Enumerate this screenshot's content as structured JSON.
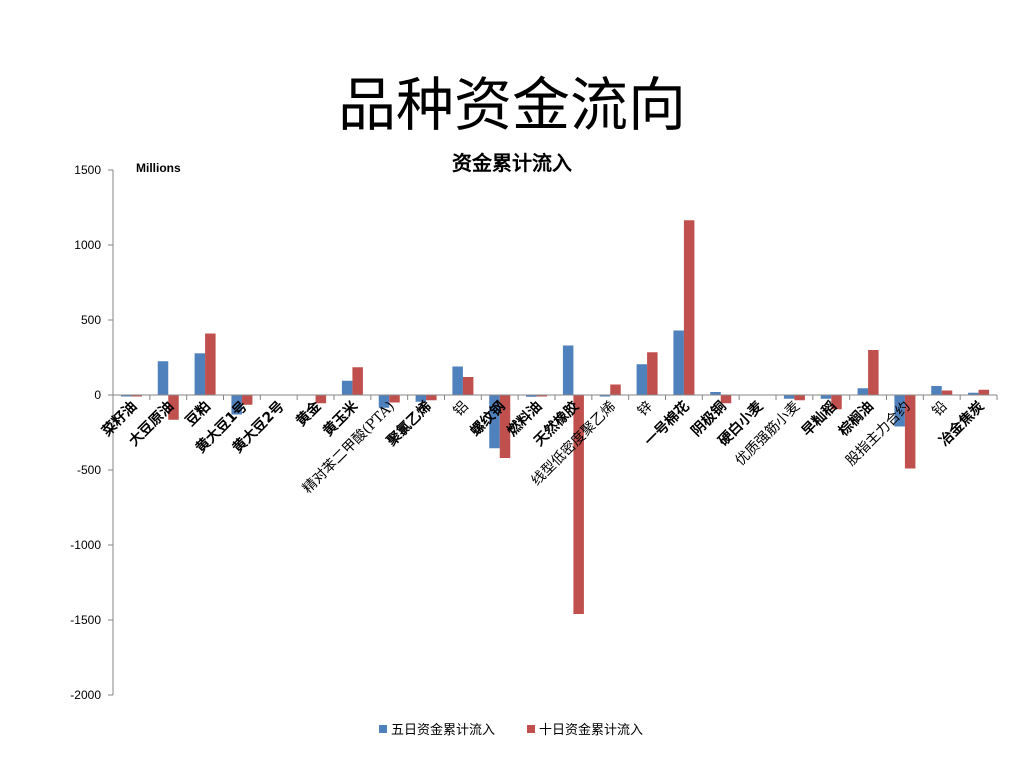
{
  "slide": {
    "title": "品种资金流向"
  },
  "colors": {
    "five_day": "#4f81bd",
    "ten_day": "#c0504d",
    "axis": "#868686"
  },
  "chart_data": {
    "type": "bar",
    "title": "资金累计流入",
    "units_label": "Millions",
    "xlabel": "",
    "ylabel": "",
    "ylim": [
      -2000,
      1500
    ],
    "yticks": [
      1500,
      1000,
      500,
      0,
      -500,
      -1000,
      -1500,
      -2000
    ],
    "grid": false,
    "legend": "bottom",
    "categories": [
      "菜籽油",
      "大豆原油",
      "豆粕",
      "黄大豆1号",
      "黄大豆2号",
      "黄金",
      "黄玉米",
      "精对苯二甲酸(PTA)",
      "聚氯乙烯",
      "铝",
      "螺纹钢",
      "燃料油",
      "天然橡胶",
      "线型低密度聚乙烯",
      "锌",
      "一号棉花",
      "阴极铜",
      "硬白小麦",
      "优质强筋小麦",
      "早籼稻",
      "棕榈油",
      "股指主力合约",
      "铅",
      "冶金焦炭"
    ],
    "label_styles": [
      "bold",
      "bold",
      "bold",
      "bold",
      "bold",
      "bold",
      "bold",
      "light",
      "bold",
      "light",
      "bold",
      "bold",
      "bold",
      "light",
      "light",
      "bold",
      "bold",
      "bold",
      "light",
      "bold",
      "bold",
      "light",
      "light",
      "bold"
    ],
    "series": [
      {
        "name": "五日资金累计流入",
        "values": [
          -10,
          225,
          278,
          -130,
          0,
          0,
          95,
          -85,
          -45,
          190,
          -355,
          -12,
          330,
          -10,
          205,
          430,
          20,
          0,
          -25,
          -25,
          45,
          -210,
          60,
          15
        ]
      },
      {
        "name": "十日资金累计流入",
        "values": [
          -10,
          -165,
          410,
          -65,
          0,
          -55,
          185,
          -50,
          -35,
          120,
          -420,
          -10,
          -1460,
          70,
          285,
          1165,
          -55,
          0,
          -35,
          -95,
          300,
          -490,
          30,
          35
        ]
      }
    ]
  }
}
